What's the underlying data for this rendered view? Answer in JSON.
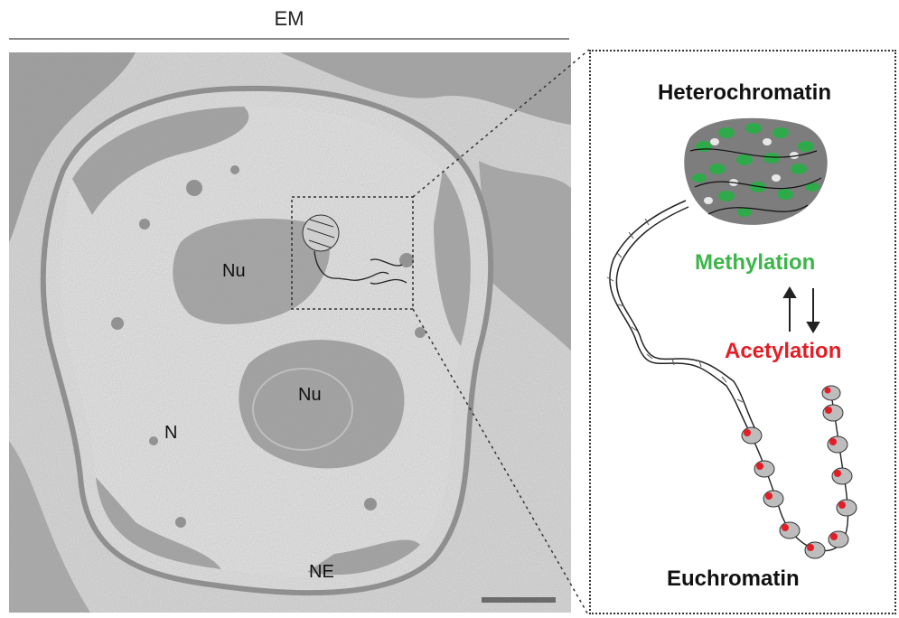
{
  "em_panel": {
    "title": "EM",
    "labels": {
      "nucleolus_1": "Nu",
      "nucleolus_2": "Nu",
      "nucleus": "N",
      "nuclear_envelope": "NE"
    }
  },
  "schematic": {
    "heterochromatin": "Heterochromatin",
    "methylation": "Methylation",
    "acetylation": "Acetylation",
    "euchromatin": "Euchromatin"
  },
  "colors": {
    "methylation": "#3cb54a",
    "acetylation": "#e41e26"
  },
  "icons": [
    "up-arrow-icon",
    "down-arrow-icon"
  ]
}
